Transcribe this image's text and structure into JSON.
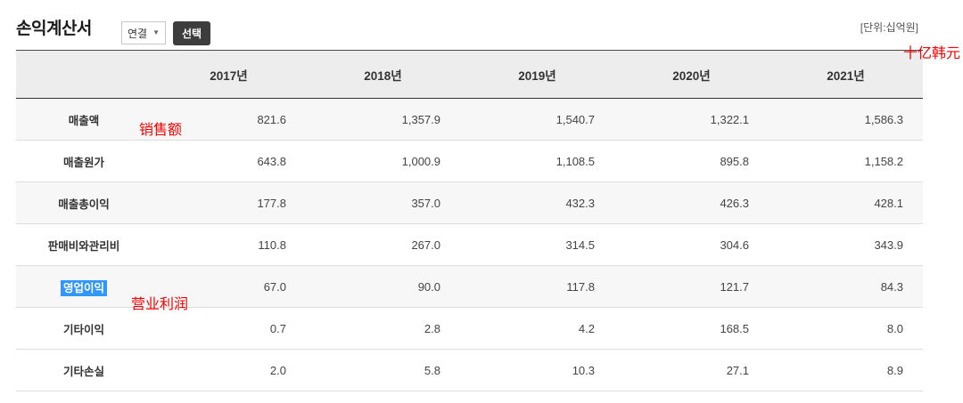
{
  "page": {
    "title": "손익계산서",
    "unit_label": "[단위:십억원]",
    "filter_select": {
      "selected": "연결",
      "arrow": "▼"
    },
    "select_button_label": "선택"
  },
  "annotations": {
    "color": "#f40000",
    "unit_cn": "十亿韩元",
    "revenue_cn": "销售额",
    "operating_profit_cn": "营业利润"
  },
  "colors": {
    "header_bg": "#ededee",
    "shaded_row_bg": "#f7f7f8",
    "selection_highlight": "#3297fd",
    "button_bg": "#3d3d3d"
  },
  "chart_data": {
    "type": "table",
    "title": "손익계산서",
    "unit": "[단위:십억원]",
    "columns": [
      "2017년",
      "2018년",
      "2019년",
      "2020년",
      "2021년"
    ],
    "rows": [
      {
        "label": "매출액",
        "values": [
          "821.6",
          "1,357.9",
          "1,540.7",
          "1,322.1",
          "1,586.3"
        ],
        "shaded": true,
        "highlighted": false
      },
      {
        "label": "매출원가",
        "values": [
          "643.8",
          "1,000.9",
          "1,108.5",
          "895.8",
          "1,158.2"
        ],
        "shaded": false,
        "highlighted": false
      },
      {
        "label": "매출총이익",
        "values": [
          "177.8",
          "357.0",
          "432.3",
          "426.3",
          "428.1"
        ],
        "shaded": true,
        "highlighted": false
      },
      {
        "label": "판매비와관리비",
        "values": [
          "110.8",
          "267.0",
          "314.5",
          "304.6",
          "343.9"
        ],
        "shaded": false,
        "highlighted": false
      },
      {
        "label": "영업이익",
        "values": [
          "67.0",
          "90.0",
          "117.8",
          "121.7",
          "84.3"
        ],
        "shaded": true,
        "highlighted": true
      },
      {
        "label": "기타이익",
        "values": [
          "0.7",
          "2.8",
          "4.2",
          "168.5",
          "8.0"
        ],
        "shaded": false,
        "highlighted": false
      },
      {
        "label": "기타손실",
        "values": [
          "2.0",
          "5.8",
          "10.3",
          "27.1",
          "8.9"
        ],
        "shaded": false,
        "highlighted": false
      }
    ]
  }
}
